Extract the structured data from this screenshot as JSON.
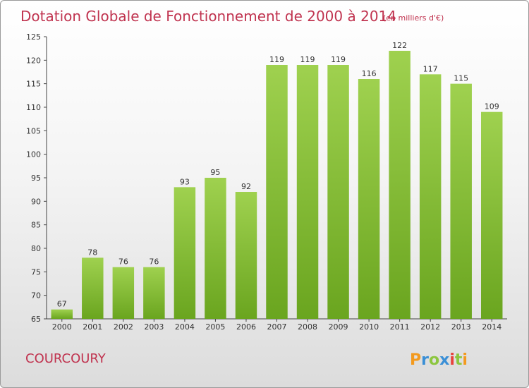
{
  "chart_data": {
    "type": "bar",
    "title": "Dotation Globale de Fonctionnement de 2000 à 2014",
    "subtitle": "(en milliers d'€)",
    "categories": [
      "2000",
      "2001",
      "2002",
      "2003",
      "2004",
      "2005",
      "2006",
      "2007",
      "2008",
      "2009",
      "2010",
      "2011",
      "2012",
      "2013",
      "2014"
    ],
    "values": [
      67,
      78,
      76,
      76,
      93,
      95,
      92,
      119,
      119,
      119,
      116,
      122,
      117,
      115,
      109
    ],
    "ylim": [
      65,
      125
    ],
    "yticks": [
      65,
      70,
      75,
      80,
      85,
      90,
      95,
      100,
      105,
      110,
      115,
      120,
      125
    ],
    "grid": false,
    "data_labels": true,
    "bar_color": "#8cc63f"
  },
  "footer": {
    "commune": "COURCOURY",
    "logo": "Proxiti"
  },
  "logo_letters": [
    {
      "ch": "P",
      "color": "#f39a1e"
    },
    {
      "ch": "r",
      "color": "#3a8fd6"
    },
    {
      "ch": "o",
      "color": "#8cc63f"
    },
    {
      "ch": "x",
      "color": "#3a8fd6"
    },
    {
      "ch": "i",
      "color": "#e8423c"
    },
    {
      "ch": "t",
      "color": "#8cc63f"
    },
    {
      "ch": "i",
      "color": "#f39a1e"
    }
  ]
}
